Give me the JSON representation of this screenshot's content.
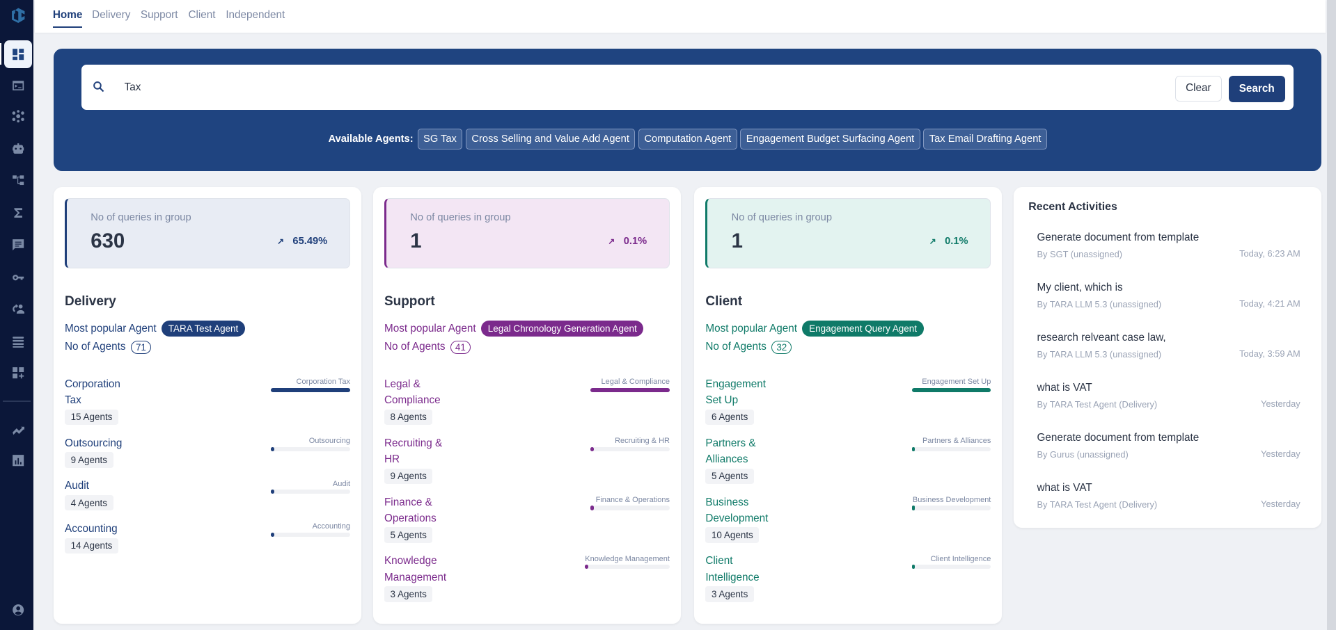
{
  "nav": {
    "tabs": [
      "Home",
      "Delivery",
      "Support",
      "Client",
      "Independent"
    ],
    "active": "Home"
  },
  "search": {
    "value": "Tax",
    "clear_label": "Clear",
    "search_label": "Search",
    "available_label": "Available Agents:",
    "agents": [
      "SG Tax",
      "Cross Selling and Value Add Agent",
      "Computation Agent",
      "Engagement Budget Surfacing Agent",
      "Tax Email Drafting Agent"
    ]
  },
  "groups": [
    {
      "title": "Delivery",
      "color": "#1f3f7a",
      "bg": "#e8ecf4",
      "queries_label": "No of queries in group",
      "queries": "630",
      "trend": "65.49%",
      "popular_label": "Most popular Agent",
      "popular": "TARA Test Agent",
      "agents_label": "No of Agents",
      "agents_count": "71",
      "categories": [
        {
          "name": "Corporation Tax",
          "agents": "15 Agents",
          "fill": 100
        },
        {
          "name": "Outsourcing",
          "agents": "9 Agents",
          "fill": 2
        },
        {
          "name": "Audit",
          "agents": "4 Agents",
          "fill": 2
        },
        {
          "name": "Accounting",
          "agents": "14 Agents",
          "fill": 2
        }
      ]
    },
    {
      "title": "Support",
      "color": "#7b2a8c",
      "bg": "#f3e6f4",
      "queries_label": "No of queries in group",
      "queries": "1",
      "trend": "0.1%",
      "popular_label": "Most popular Agent",
      "popular": "Legal Chronology Generation Agent",
      "agents_label": "No of Agents",
      "agents_count": "41",
      "categories": [
        {
          "name": "Legal & Compliance",
          "agents": "8 Agents",
          "fill": 100
        },
        {
          "name": "Recruiting & HR",
          "agents": "9 Agents",
          "fill": 2
        },
        {
          "name": "Finance & Operations",
          "agents": "5 Agents",
          "fill": 2
        },
        {
          "name": "Knowledge Management",
          "agents": "3 Agents",
          "fill": 2
        }
      ]
    },
    {
      "title": "Client",
      "color": "#0f7a68",
      "bg": "#e3f3f0",
      "queries_label": "No of queries in group",
      "queries": "1",
      "trend": "0.1%",
      "popular_label": "Most popular Agent",
      "popular": "Engagement Query Agent",
      "agents_label": "No of Agents",
      "agents_count": "32",
      "categories": [
        {
          "name": "Engagement Set Up",
          "agents": "6 Agents",
          "fill": 100
        },
        {
          "name": "Partners & Alliances",
          "agents": "5 Agents",
          "fill": 2
        },
        {
          "name": "Business Development",
          "agents": "10 Agents",
          "fill": 2
        },
        {
          "name": "Client Intelligence",
          "agents": "3 Agents",
          "fill": 2
        }
      ]
    }
  ],
  "recent": {
    "title": "Recent Activities",
    "items": [
      {
        "title": "Generate document from template",
        "by": "By SGT (unassigned)",
        "time": "Today, 6:23 AM"
      },
      {
        "title": "My client, which is",
        "by": "By TARA LLM 5.3 (unassigned)",
        "time": "Today, 4:21 AM"
      },
      {
        "title": "research relveant case law,",
        "by": "By TARA LLM 5.3 (unassigned)",
        "time": "Today, 3:59 AM"
      },
      {
        "title": "what is VAT",
        "by": "By TARA Test Agent (Delivery)",
        "time": "Yesterday"
      },
      {
        "title": "Generate document from template",
        "by": "By Gurus (unassigned)",
        "time": "Yesterday"
      },
      {
        "title": "what is VAT",
        "by": "By TARA Test Agent (Delivery)",
        "time": "Yesterday"
      }
    ]
  }
}
